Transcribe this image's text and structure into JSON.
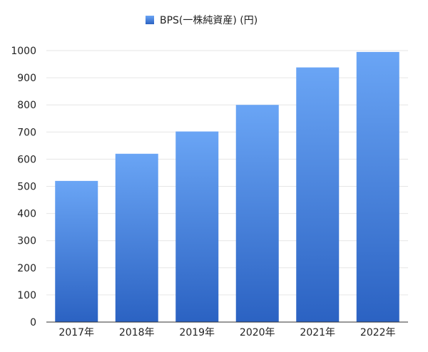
{
  "chart_data": {
    "type": "bar",
    "categories": [
      "2017年",
      "2018年",
      "2019年",
      "2020年",
      "2021年",
      "2022年"
    ],
    "series": [
      {
        "name": "BPS(一株純資産) (円)",
        "values": [
          520,
          620,
          702,
          800,
          938,
          995
        ]
      }
    ],
    "ylim": [
      0,
      1000
    ],
    "yticks": [
      0,
      100,
      200,
      300,
      400,
      500,
      600,
      700,
      800,
      900,
      1000
    ],
    "grid": true,
    "legend_position": "top-center",
    "colors": {
      "bar_top": "#6aa5f5",
      "bar_bottom": "#2b62c2",
      "grid": "#e6e6e6",
      "axis": "#333333"
    }
  }
}
